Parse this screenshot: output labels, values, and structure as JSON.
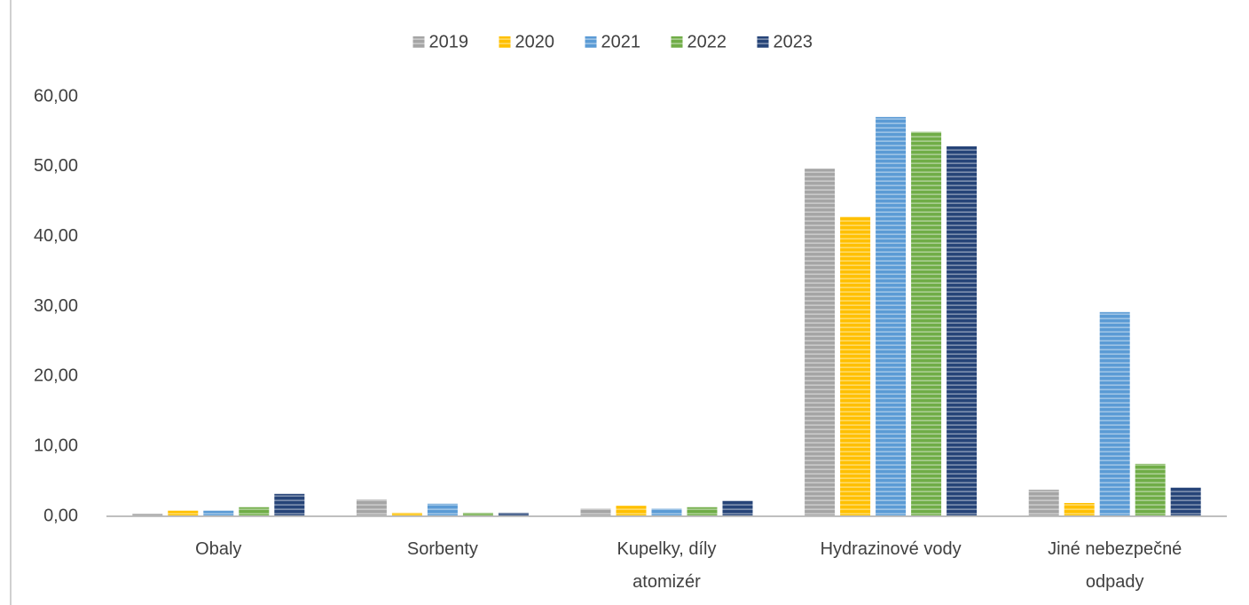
{
  "chart_data": {
    "type": "bar",
    "categories": [
      "Obaly",
      "Sorbenty",
      "Kupelky, díly atomizér",
      "Hydrazinové vody",
      "Jiné nebezpečné odpady"
    ],
    "series": [
      {
        "name": "2019",
        "color": "#a5a5a5",
        "values": [
          0.4,
          2.4,
          1.1,
          49.7,
          3.8
        ]
      },
      {
        "name": "2020",
        "color": "#ffc000",
        "values": [
          0.8,
          0.5,
          1.5,
          42.8,
          1.9
        ]
      },
      {
        "name": "2021",
        "color": "#5b9bd5",
        "values": [
          0.8,
          1.8,
          1.1,
          57.1,
          29.2
        ]
      },
      {
        "name": "2022",
        "color": "#70ad47",
        "values": [
          1.3,
          0.5,
          1.3,
          55.0,
          7.5
        ]
      },
      {
        "name": "2023",
        "color": "#264478",
        "values": [
          3.2,
          0.5,
          2.2,
          52.9,
          4.1
        ]
      }
    ],
    "ylim": [
      0,
      60
    ],
    "yticks": [
      {
        "value": 0,
        "label": "0,00"
      },
      {
        "value": 10,
        "label": "10,00"
      },
      {
        "value": 20,
        "label": "20,00"
      },
      {
        "value": 30,
        "label": "30,00"
      },
      {
        "value": 40,
        "label": "40,00"
      },
      {
        "value": 50,
        "label": "50,00"
      },
      {
        "value": 60,
        "label": "60,00"
      }
    ],
    "grid": false,
    "legend": "top"
  }
}
